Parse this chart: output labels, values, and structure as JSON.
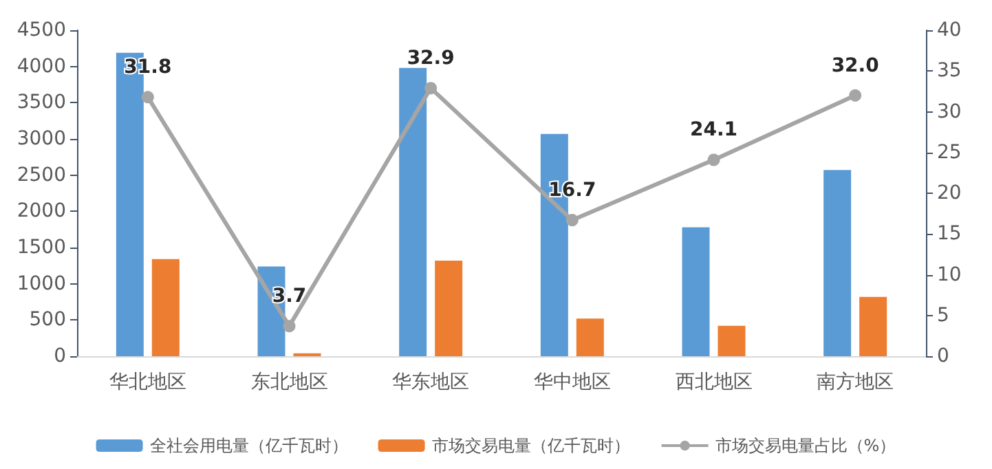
{
  "chart_data": {
    "type": "bar",
    "categories": [
      "华北地区",
      "东北地区",
      "华东地区",
      "华中地区",
      "西北地区",
      "南方地区"
    ],
    "series": [
      {
        "name": "全社会用电量（亿千瓦时）",
        "color": "#5b9bd5",
        "values": [
          4190,
          1240,
          3980,
          3070,
          1780,
          2570
        ]
      },
      {
        "name": "市场交易电量（亿千瓦时）",
        "color": "#ed7d31",
        "values": [
          1340,
          40,
          1320,
          520,
          420,
          820
        ]
      },
      {
        "name": "市场交易电量占比（%）",
        "type": "line",
        "axis": "y2",
        "color": "#a5a5a5",
        "marker": "circle",
        "values": [
          31.8,
          3.7,
          32.9,
          16.7,
          24.1,
          32.0
        ],
        "value_labels": [
          "31.8",
          "3.7",
          "32.9",
          "16.7",
          "24.1",
          "32.0"
        ]
      }
    ],
    "ylim": [
      0,
      4500
    ],
    "yticks": [
      0,
      500,
      1000,
      1500,
      2000,
      2500,
      3000,
      3500,
      4000,
      4500
    ],
    "y2lim": [
      0,
      40
    ],
    "y2ticks": [
      0,
      5,
      10,
      15,
      20,
      25,
      30,
      35,
      40
    ],
    "grid": false,
    "legend": "bottom"
  }
}
